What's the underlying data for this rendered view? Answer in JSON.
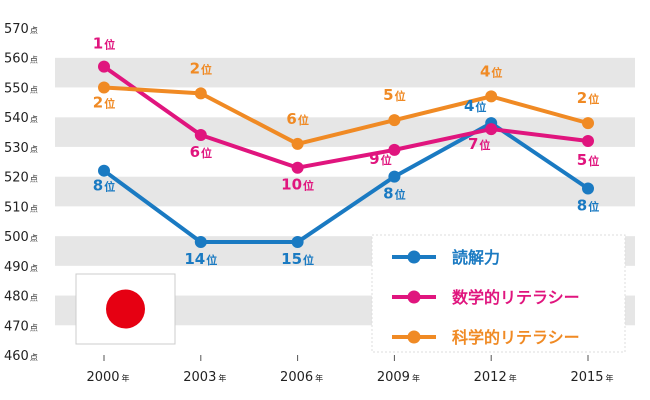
{
  "chart_data": {
    "type": "line",
    "categories": [
      "2000",
      "2003",
      "2006",
      "2009",
      "2012",
      "2015"
    ],
    "x_unit": "年",
    "y_unit": "点",
    "ylim": [
      460,
      570
    ],
    "yticks": [
      460,
      470,
      480,
      490,
      500,
      510,
      520,
      530,
      540,
      550,
      560,
      570
    ],
    "grid": "alternating horizontal bands",
    "legend_position": "bottom-right",
    "rank_unit": "位",
    "series": [
      {
        "name": "読解力",
        "color": "#1a7ac2",
        "values": [
          522,
          498,
          498,
          520,
          538,
          516
        ],
        "ranks": [
          "8",
          "14",
          "15",
          "8",
          "4",
          "8"
        ]
      },
      {
        "name": "数学的リテラシー",
        "color": "#e0157e",
        "values": [
          557,
          534,
          523,
          529,
          536,
          532
        ],
        "ranks": [
          "1",
          "6",
          "10",
          "9",
          "7",
          "5"
        ]
      },
      {
        "name": "科学的リテラシー",
        "color": "#f08a24",
        "values": [
          550,
          548,
          531,
          539,
          547,
          538
        ],
        "ranks": [
          "2",
          "2",
          "6",
          "5",
          "4",
          "2"
        ]
      }
    ]
  },
  "flag": {
    "icon": "japan-flag-icon",
    "background": "#ffffff",
    "disc": "#e60012"
  }
}
